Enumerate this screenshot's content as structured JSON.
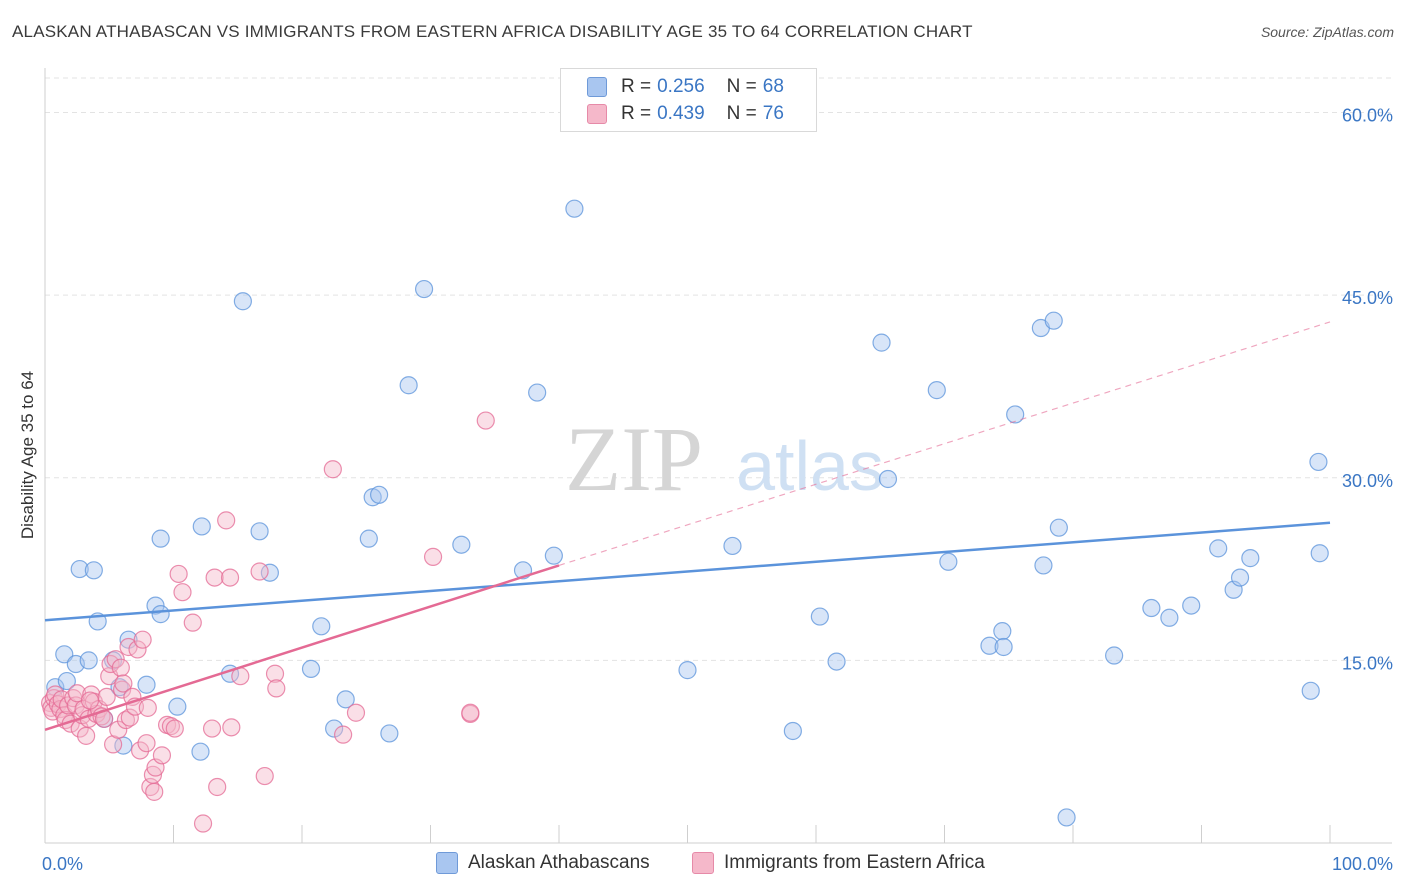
{
  "header": {
    "title": "ALASKAN ATHABASCAN VS IMMIGRANTS FROM EASTERN AFRICA DISABILITY AGE 35 TO 64 CORRELATION CHART",
    "source": "Source: ZipAtlas.com"
  },
  "watermark": {
    "zip": "ZIP",
    "atlas": "atlas"
  },
  "legend": {
    "rows": [
      {
        "r_label": "R =",
        "r_value": "0.256",
        "n_label": "N =",
        "n_value": "68",
        "color": "#a9c6f0"
      },
      {
        "r_label": "R =",
        "r_value": "0.439",
        "n_label": "N =",
        "n_value": "76",
        "color": "#f5b8ca"
      }
    ]
  },
  "bottom_legend": {
    "items": [
      {
        "label": "Alaskan Athabascans",
        "color": "#a9c6f0"
      },
      {
        "label": "Immigrants from Eastern Africa",
        "color": "#f5b8ca"
      }
    ]
  },
  "chart_data": {
    "type": "scatter",
    "title": "ALASKAN ATHABASCAN VS IMMIGRANTS FROM EASTERN AFRICA DISABILITY AGE 35 TO 64 CORRELATION CHART",
    "xlabel": "",
    "ylabel": "Disability Age 35 to 64",
    "xlim": [
      0,
      100
    ],
    "ylim": [
      0,
      63
    ],
    "x_tick_labels": [
      {
        "value": 0,
        "label": "0.0%"
      },
      {
        "value": 100,
        "label": "100.0%"
      }
    ],
    "x_tick_marks": [
      0,
      10,
      20,
      30,
      40,
      50,
      60,
      70,
      80,
      90,
      100
    ],
    "y_ticks": [
      {
        "value": 15,
        "label": "15.0%"
      },
      {
        "value": 30,
        "label": "30.0%"
      },
      {
        "value": 45,
        "label": "45.0%"
      },
      {
        "value": 60,
        "label": "60.0%"
      }
    ],
    "grid": true,
    "series": [
      {
        "name": "Alaskan Athabascans",
        "color": "#5b93db",
        "fill": "#a9c6f0",
        "trend": {
          "x": [
            0,
            100
          ],
          "y": [
            18.3,
            26.3
          ],
          "dashed_to": null
        },
        "points": [
          [
            0.8,
            12.8
          ],
          [
            1.5,
            15.5
          ],
          [
            1.7,
            13.3
          ],
          [
            2.4,
            14.7
          ],
          [
            2.7,
            22.5
          ],
          [
            3.4,
            15
          ],
          [
            3.8,
            22.4
          ],
          [
            4.1,
            18.2
          ],
          [
            4.6,
            10.2
          ],
          [
            5.3,
            15
          ],
          [
            5.8,
            12.8
          ],
          [
            6.1,
            8
          ],
          [
            6.5,
            16.7
          ],
          [
            7.9,
            13
          ],
          [
            8.6,
            19.5
          ],
          [
            9,
            18.8
          ],
          [
            9,
            25
          ],
          [
            10.3,
            11.2
          ],
          [
            12.1,
            7.5
          ],
          [
            12.2,
            26
          ],
          [
            14.4,
            13.9
          ],
          [
            15.4,
            44.5
          ],
          [
            16.7,
            25.6
          ],
          [
            17.5,
            22.2
          ],
          [
            20.7,
            14.3
          ],
          [
            21.5,
            17.8
          ],
          [
            22.5,
            9.4
          ],
          [
            23.4,
            11.8
          ],
          [
            25.2,
            25
          ],
          [
            25.5,
            28.4
          ],
          [
            26,
            28.6
          ],
          [
            26.8,
            9
          ],
          [
            28.3,
            37.6
          ],
          [
            29.5,
            45.5
          ],
          [
            32.4,
            24.5
          ],
          [
            37.2,
            22.4
          ],
          [
            38.3,
            37
          ],
          [
            39.6,
            23.6
          ],
          [
            41.2,
            52.1
          ],
          [
            50,
            14.2
          ],
          [
            53.5,
            24.4
          ],
          [
            58.2,
            9.2
          ],
          [
            60.3,
            18.6
          ],
          [
            61.6,
            14.9
          ],
          [
            65.1,
            41.1
          ],
          [
            65.6,
            29.9
          ],
          [
            69.4,
            37.2
          ],
          [
            70.3,
            23.1
          ],
          [
            73.5,
            16.2
          ],
          [
            74.5,
            17.4
          ],
          [
            74.6,
            16.1
          ],
          [
            75.5,
            35.2
          ],
          [
            77.5,
            42.3
          ],
          [
            77.7,
            22.8
          ],
          [
            78.5,
            42.9
          ],
          [
            78.9,
            25.9
          ],
          [
            79.5,
            2.1
          ],
          [
            83.2,
            15.4
          ],
          [
            86.1,
            19.3
          ],
          [
            87.5,
            18.5
          ],
          [
            89.2,
            19.5
          ],
          [
            91.3,
            24.2
          ],
          [
            92.5,
            20.8
          ],
          [
            93,
            21.8
          ],
          [
            93.8,
            23.4
          ],
          [
            99.1,
            31.3
          ],
          [
            99.2,
            23.8
          ],
          [
            98.5,
            12.5
          ]
        ]
      },
      {
        "name": "Immigrants from Eastern Africa",
        "color": "#e46a94",
        "fill": "#f5b8ca",
        "trend": {
          "x": [
            0,
            40
          ],
          "y": [
            9.3,
            22.8
          ],
          "dashed_to": [
            100,
            42.8
          ]
        },
        "points": [
          [
            0.4,
            11.5
          ],
          [
            0.5,
            11.1
          ],
          [
            0.6,
            10.8
          ],
          [
            0.7,
            11.9
          ],
          [
            0.8,
            12.2
          ],
          [
            1,
            11.4
          ],
          [
            1.2,
            11
          ],
          [
            1.3,
            11.8
          ],
          [
            1.5,
            10.5
          ],
          [
            1.6,
            10.1
          ],
          [
            1.8,
            11.3
          ],
          [
            2,
            9.8
          ],
          [
            2.2,
            11.9
          ],
          [
            2.4,
            11.3
          ],
          [
            2.5,
            12.3
          ],
          [
            2.7,
            9.4
          ],
          [
            2.9,
            10.5
          ],
          [
            3,
            11
          ],
          [
            3.2,
            8.8
          ],
          [
            3.4,
            10.2
          ],
          [
            3.6,
            12.2
          ],
          [
            3.8,
            11.6
          ],
          [
            4,
            10.6
          ],
          [
            4.2,
            11
          ],
          [
            4.4,
            10.4
          ],
          [
            4.6,
            10.2
          ],
          [
            4.8,
            12
          ],
          [
            5,
            13.7
          ],
          [
            5.1,
            14.7
          ],
          [
            5.3,
            8.1
          ],
          [
            5.5,
            15.1
          ],
          [
            5.7,
            9.3
          ],
          [
            5.9,
            14.4
          ],
          [
            6,
            12.6
          ],
          [
            6.1,
            13.1
          ],
          [
            6.3,
            10.1
          ],
          [
            6.5,
            16.1
          ],
          [
            6.6,
            10.3
          ],
          [
            6.8,
            12
          ],
          [
            7,
            11.2
          ],
          [
            7.2,
            15.9
          ],
          [
            7.4,
            7.6
          ],
          [
            7.6,
            16.7
          ],
          [
            7.9,
            8.2
          ],
          [
            8,
            11.1
          ],
          [
            8.2,
            4.6
          ],
          [
            8.4,
            5.6
          ],
          [
            8.5,
            4.2
          ],
          [
            8.6,
            6.2
          ],
          [
            9.1,
            7.2
          ],
          [
            9.5,
            9.7
          ],
          [
            9.8,
            9.6
          ],
          [
            10.1,
            9.4
          ],
          [
            10.4,
            22.1
          ],
          [
            10.7,
            20.6
          ],
          [
            11.5,
            18.1
          ],
          [
            12.3,
            1.6
          ],
          [
            13,
            9.4
          ],
          [
            13.2,
            21.8
          ],
          [
            13.4,
            4.6
          ],
          [
            14.1,
            26.5
          ],
          [
            14.4,
            21.8
          ],
          [
            14.5,
            9.5
          ],
          [
            15.2,
            13.7
          ],
          [
            16.7,
            22.3
          ],
          [
            17.1,
            5.5
          ],
          [
            17.9,
            13.9
          ],
          [
            18,
            12.7
          ],
          [
            22.4,
            30.7
          ],
          [
            23.2,
            8.9
          ],
          [
            24.2,
            10.7
          ],
          [
            30.2,
            23.5
          ],
          [
            33.1,
            10.6
          ],
          [
            33.1,
            10.7
          ],
          [
            34.3,
            34.7
          ],
          [
            3.5,
            11.7
          ]
        ]
      }
    ]
  }
}
